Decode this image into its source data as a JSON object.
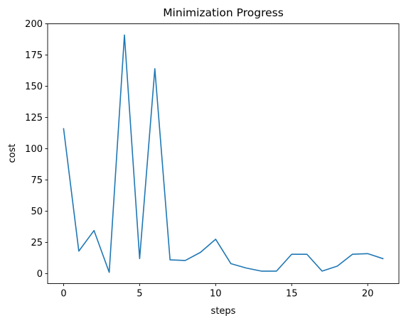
{
  "chart_data": {
    "type": "line",
    "title": "Minimization Progress",
    "xlabel": "steps",
    "ylabel": "cost",
    "x": [
      0,
      1,
      2,
      3,
      4,
      5,
      6,
      7,
      8,
      9,
      10,
      11,
      12,
      13,
      14,
      15,
      16,
      17,
      18,
      19,
      20,
      21
    ],
    "series": [
      {
        "color": "#1f77b4",
        "values": [
          116,
          18,
          34.5,
          1,
          191,
          12,
          164,
          11,
          10.5,
          17,
          27.5,
          8,
          4.5,
          2,
          2,
          15.5,
          15.5,
          2,
          6,
          15.5,
          16,
          12
        ]
      }
    ],
    "xlim": [
      -1.05,
      22.05
    ],
    "ylim": [
      -8,
      200
    ],
    "xticks": [
      0,
      5,
      10,
      15,
      20
    ],
    "yticks": [
      0,
      25,
      50,
      75,
      100,
      125,
      150,
      175,
      200
    ],
    "grid": false,
    "legend": "none"
  }
}
